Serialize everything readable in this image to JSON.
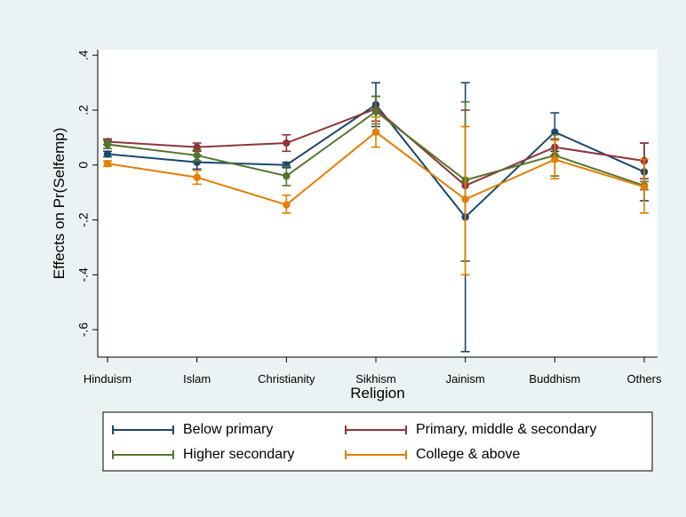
{
  "chart_data": {
    "type": "line",
    "xlabel": "Religion",
    "ylabel": "Effects on Pr(Selfemp)",
    "categories": [
      "Hinduism",
      "Islam",
      "Christianity",
      "Sikhism",
      "Jainism",
      "Buddhism",
      "Others"
    ],
    "ylim": [
      -0.7,
      0.42
    ],
    "yticks": [
      0.4,
      0.2,
      0,
      -0.2,
      -0.4,
      -0.6
    ],
    "ytick_labels": [
      ".4",
      ".2",
      "0",
      "-.2",
      "-.4",
      "-.6"
    ],
    "grid": false,
    "legend_position": "bottom",
    "series": [
      {
        "name": "Below primary",
        "color": "#1a476f",
        "values": [
          0.04,
          0.01,
          0.0,
          0.22,
          -0.19,
          0.12,
          -0.025
        ],
        "ci_low": [
          0.03,
          -0.015,
          -0.01,
          0.14,
          -0.68,
          0.05,
          -0.13
        ],
        "ci_high": [
          0.05,
          0.035,
          0.01,
          0.3,
          0.3,
          0.19,
          0.08
        ]
      },
      {
        "name": "Primary, middle & secondary",
        "color": "#90353b",
        "values": [
          0.085,
          0.065,
          0.08,
          0.205,
          -0.075,
          0.065,
          0.015
        ],
        "ci_low": [
          0.075,
          0.05,
          0.05,
          0.16,
          -0.35,
          0.035,
          -0.05
        ],
        "ci_high": [
          0.095,
          0.08,
          0.11,
          0.25,
          0.2,
          0.095,
          0.08
        ]
      },
      {
        "name": "Higher secondary",
        "color": "#55752f",
        "values": [
          0.075,
          0.035,
          -0.04,
          0.195,
          -0.055,
          0.035,
          -0.075
        ],
        "ci_low": [
          0.06,
          0.015,
          -0.075,
          0.15,
          -0.35,
          -0.04,
          -0.09
        ],
        "ci_high": [
          0.09,
          0.055,
          -0.005,
          0.25,
          0.23,
          0.11,
          -0.06
        ]
      },
      {
        "name": "College & above",
        "color": "#e37e00",
        "values": [
          0.005,
          -0.045,
          -0.145,
          0.12,
          -0.125,
          0.02,
          -0.08
        ],
        "ci_low": [
          -0.005,
          -0.07,
          -0.175,
          0.065,
          -0.4,
          -0.05,
          -0.175
        ],
        "ci_high": [
          0.015,
          -0.02,
          -0.11,
          0.175,
          0.14,
          0.09,
          0.02
        ]
      }
    ]
  }
}
